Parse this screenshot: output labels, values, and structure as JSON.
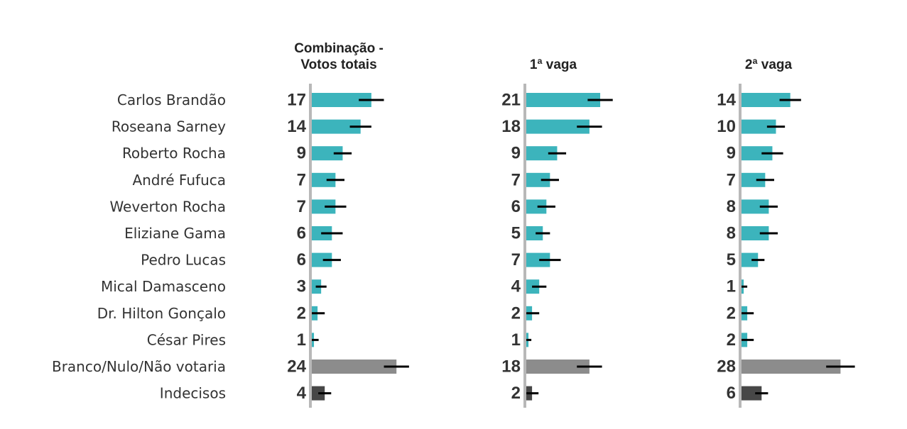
{
  "chart_data": {
    "type": "bar",
    "orientation": "horizontal",
    "categories": [
      "Carlos Brandão",
      "Roseana Sarney",
      "Roberto Rocha",
      "André Fufuca",
      "Weverton Rocha",
      "Eliziane Gama",
      "Pedro Lucas",
      "Mical Damasceno",
      "Dr. Hilton Gonçalo",
      "César Pires",
      "Branco/Nulo/Não votaria",
      "Indecisos"
    ],
    "series": [
      {
        "name": "Combinação - Votos totais",
        "title_lines": [
          "Combinação -",
          "Votos totais"
        ],
        "values": [
          17,
          14,
          9,
          7,
          7,
          6,
          6,
          3,
          2,
          1,
          24,
          4
        ],
        "error_half_width": [
          3.5,
          3,
          2.5,
          2.5,
          3,
          3,
          2.5,
          1.5,
          2,
          1.3,
          3.5,
          1.8
        ]
      },
      {
        "name": "1ª vaga",
        "title_lines": [
          "1ª vaga"
        ],
        "values": [
          21,
          18,
          9,
          7,
          6,
          5,
          7,
          4,
          2,
          1,
          18,
          2
        ],
        "error_half_width": [
          3.5,
          3.5,
          2.5,
          2.5,
          2.5,
          2,
          3,
          2,
          2,
          0.8,
          3.5,
          1.8
        ]
      },
      {
        "name": "2ª vaga",
        "title_lines": [
          "2ª vaga"
        ],
        "values": [
          14,
          10,
          9,
          7,
          8,
          8,
          5,
          1,
          2,
          2,
          28,
          6
        ],
        "error_half_width": [
          3,
          2.5,
          3,
          2.5,
          2.5,
          2.5,
          1.8,
          1,
          1.8,
          1.8,
          4,
          1.8
        ]
      }
    ],
    "xlim": [
      0,
      30
    ],
    "grid": false,
    "colors": {
      "candidate": "#3cb4bc",
      "blank": "#8c8c8c",
      "undecided": "#474747",
      "axis": "#b8b8b8",
      "error": "#000000"
    }
  }
}
